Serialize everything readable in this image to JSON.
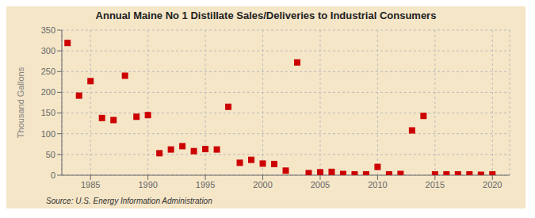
{
  "chart_data": {
    "type": "scatter",
    "title": "Annual Maine No 1 Distillate Sales/Deliveries to Industrial Consumers",
    "ylabel": "Thousand Gallons",
    "annotations": [
      "Source: U.S. Energy Information Administration"
    ],
    "x": [
      1983,
      1984,
      1985,
      1986,
      1987,
      1988,
      1989,
      1990,
      1991,
      1992,
      1993,
      1994,
      1995,
      1996,
      1997,
      1998,
      1999,
      2000,
      2001,
      2002,
      2003,
      2004,
      2005,
      2006,
      2007,
      2008,
      2009,
      2010,
      2011,
      2012,
      2013,
      2014,
      2015,
      2016,
      2017,
      2018,
      2019,
      2020
    ],
    "values": [
      319,
      192,
      227,
      138,
      133,
      240,
      141,
      145,
      53,
      62,
      70,
      58,
      63,
      62,
      165,
      30,
      37,
      28,
      27,
      11,
      272,
      5,
      7,
      8,
      3,
      2,
      2,
      20,
      2,
      3,
      108,
      143,
      2,
      2,
      2,
      2,
      1,
      2
    ],
    "color": "#cc0000",
    "marker": "square",
    "xlim": [
      1982.5,
      2021.5
    ],
    "ylim": [
      0,
      350
    ],
    "xticks": [
      1985,
      1990,
      1995,
      2000,
      2005,
      2010,
      2015,
      2020
    ],
    "yticks": [
      0,
      50,
      100,
      150,
      200,
      250,
      300,
      350
    ],
    "grid": true
  }
}
